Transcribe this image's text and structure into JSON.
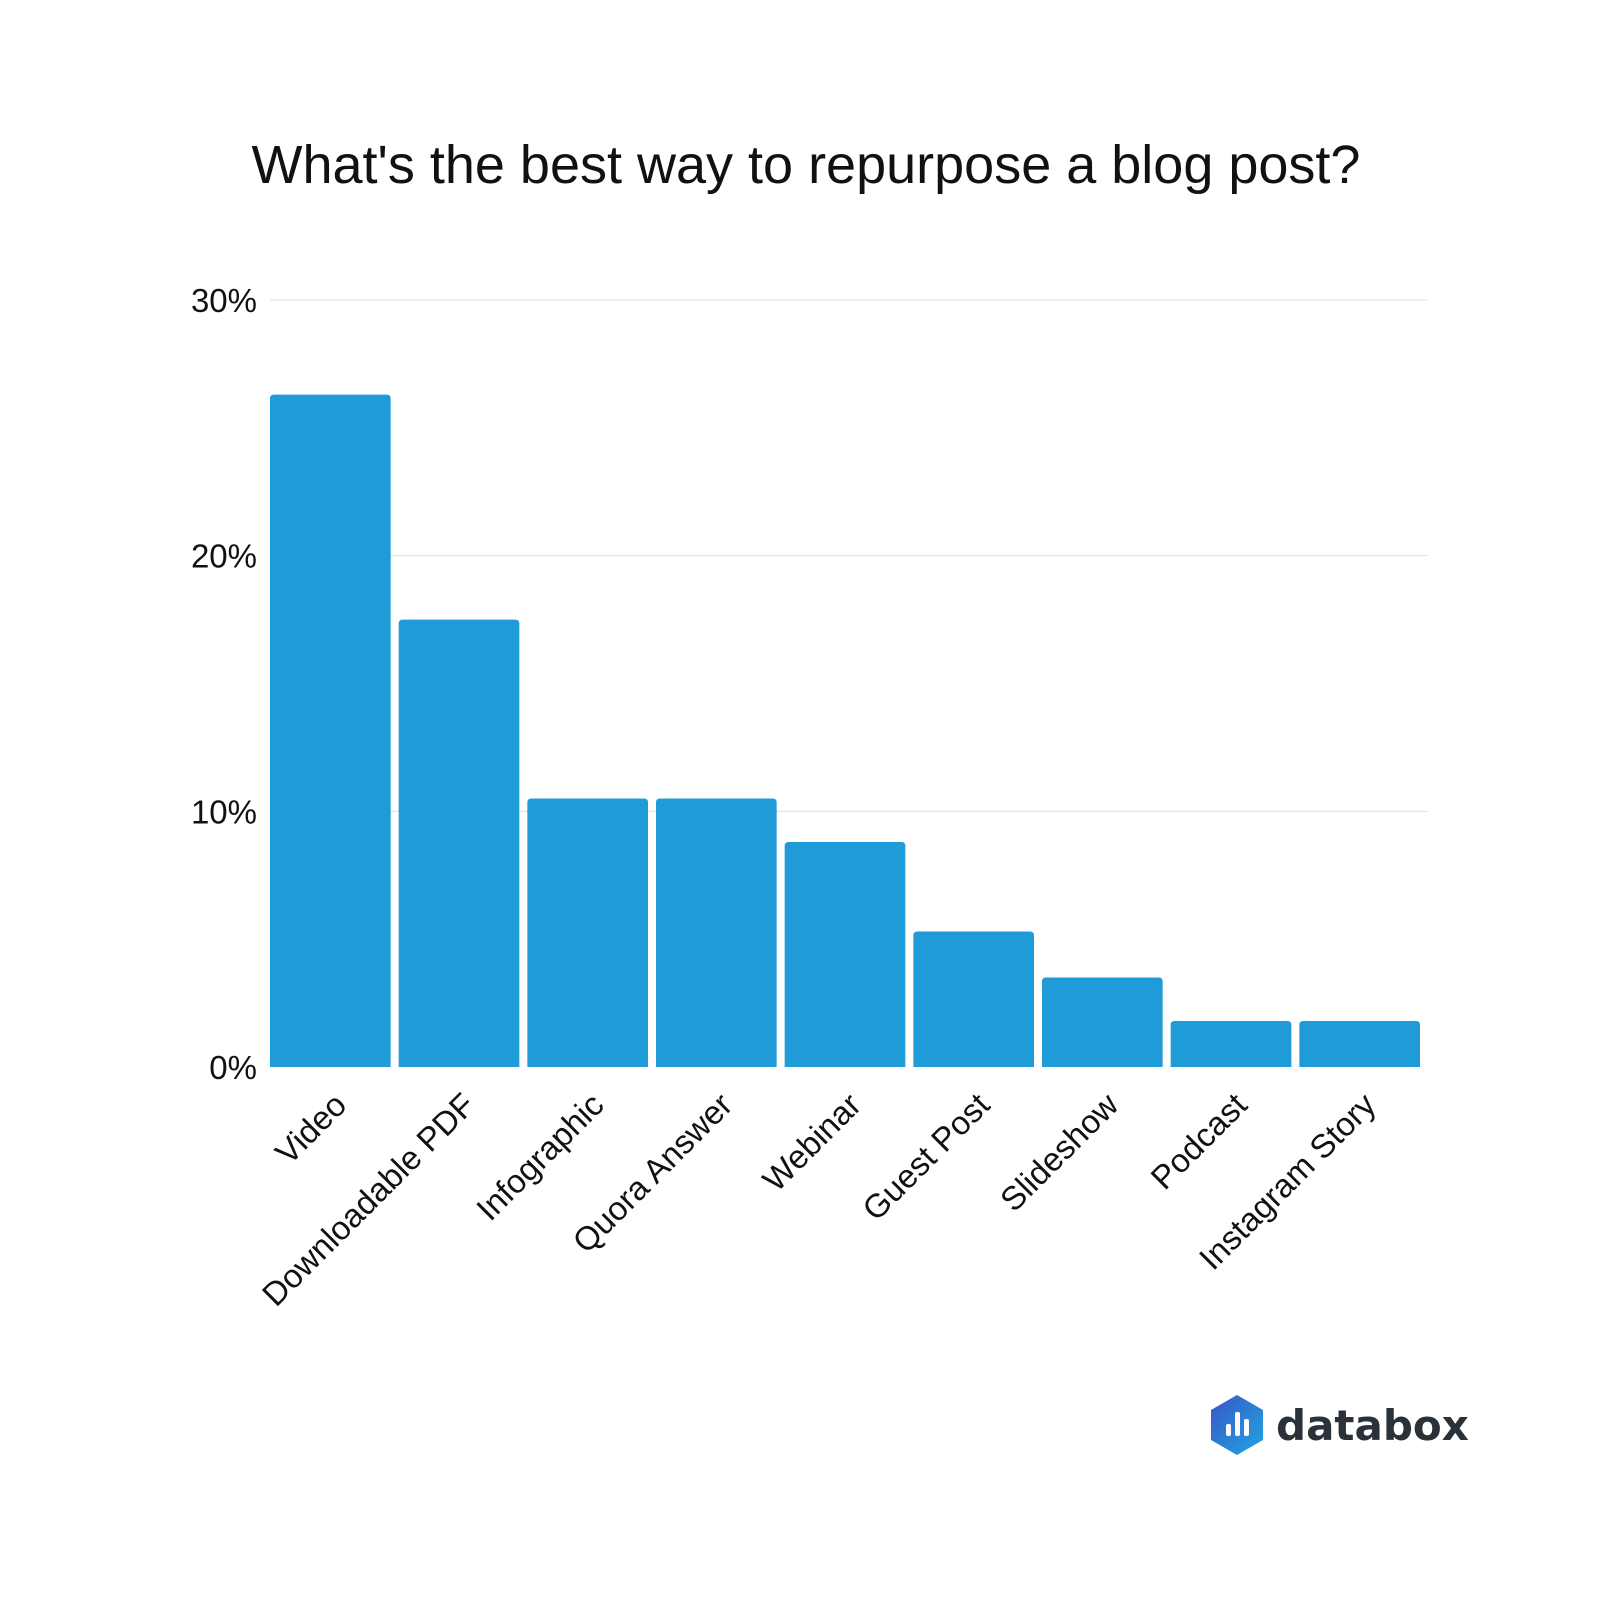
{
  "chart_data": {
    "type": "bar",
    "title": "What's the best way to repurpose a blog post?",
    "xlabel": "",
    "ylabel": "",
    "categories": [
      "Video",
      "Downloadable PDF",
      "Infographic",
      "Quora Answer",
      "Webinar",
      "Guest Post",
      "Slideshow",
      "Podcast",
      "Instagram Story"
    ],
    "values": [
      26.3,
      17.5,
      10.5,
      10.5,
      8.8,
      5.3,
      3.5,
      1.8,
      1.8
    ],
    "ylim": [
      0,
      30
    ],
    "yticks": [
      0,
      10,
      20,
      30
    ],
    "ytick_labels": [
      "0%",
      "10%",
      "20%",
      "30%"
    ],
    "grid": true,
    "legend": "none",
    "bar_color": "#1f9bd7"
  },
  "brand": {
    "name": "databox",
    "icon": "databox-logo-icon",
    "colors": [
      "#3a55c7",
      "#1fa7e0"
    ]
  }
}
